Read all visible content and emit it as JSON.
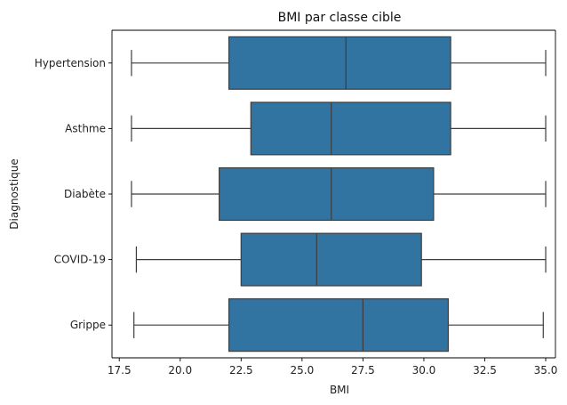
{
  "chart_data": {
    "type": "box",
    "orientation": "horizontal",
    "title": "BMI par classe cible",
    "xlabel": "BMI",
    "ylabel": "Diagnostique",
    "xlim": [
      17.2,
      35.4
    ],
    "xticks": [
      17.5,
      20.0,
      22.5,
      25.0,
      27.5,
      30.0,
      32.5,
      35.0
    ],
    "xtick_labels": [
      "17.5",
      "20.0",
      "22.5",
      "25.0",
      "27.5",
      "30.0",
      "32.5",
      "35.0"
    ],
    "grid": false,
    "box_color": "#3274a1",
    "line_color": "#3d3d3d",
    "categories": [
      "Hypertension",
      "Asthme",
      "Diabète",
      "COVID-19",
      "Grippe"
    ],
    "boxes": [
      {
        "category": "Hypertension",
        "whisker_low": 18.0,
        "q1": 22.0,
        "median": 26.8,
        "q3": 31.1,
        "whisker_high": 35.0
      },
      {
        "category": "Asthme",
        "whisker_low": 18.0,
        "q1": 22.9,
        "median": 26.2,
        "q3": 31.1,
        "whisker_high": 35.0
      },
      {
        "category": "Diabète",
        "whisker_low": 18.0,
        "q1": 21.6,
        "median": 26.2,
        "q3": 30.4,
        "whisker_high": 35.0
      },
      {
        "category": "COVID-19",
        "whisker_low": 18.2,
        "q1": 22.5,
        "median": 25.6,
        "q3": 29.9,
        "whisker_high": 35.0
      },
      {
        "category": "Grippe",
        "whisker_low": 18.1,
        "q1": 22.0,
        "median": 27.5,
        "q3": 31.0,
        "whisker_high": 34.9
      }
    ]
  }
}
